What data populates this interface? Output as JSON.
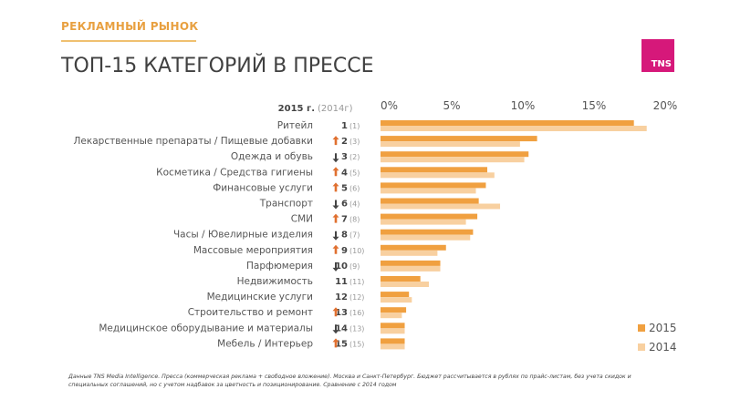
{
  "header": {
    "section": "РЕКЛАМНЫЙ РЫНОК",
    "title": "ТОП-15 КАТЕГОРИЙ В ПРЕССЕ",
    "logo": "TNS"
  },
  "chart_data": {
    "type": "bar",
    "orientation": "horizontal",
    "rank_header_2015": "2015 г.",
    "rank_header_2014": "(2014г)",
    "xlim": [
      0,
      20
    ],
    "xticks": [
      "0%",
      "5%",
      "10%",
      "15%",
      "20%"
    ],
    "categories": [
      "Ритейл",
      "Лекарственные препараты / Пищевые добавки",
      "Одежда и обувь",
      "Косметика / Средства гигиены",
      "Финансовые услуги",
      "Транспорт",
      "СМИ",
      "Часы / Ювелирные изделия",
      "Массовые мероприятия",
      "Парфюмерия",
      "Недвижимость",
      "Медицинские услуги",
      "Строительство и ремонт",
      "Медицинское оборудывание и материалы",
      "Мебель / Интерьер"
    ],
    "rank_2015": [
      "1",
      "2",
      "3",
      "4",
      "5",
      "6",
      "7",
      "8",
      "9",
      "10",
      "11",
      "12",
      "13",
      "14",
      "15"
    ],
    "rank_2014": [
      "(1)",
      "(3)",
      "(2)",
      "(5)",
      "(6)",
      "(4)",
      "(8)",
      "(7)",
      "(10)",
      "(9)",
      "(11)",
      "(12)",
      "(16)",
      "(13)",
      "(15)"
    ],
    "trend": [
      "none",
      "up",
      "down",
      "up",
      "up",
      "down",
      "up",
      "down",
      "up",
      "down",
      "none",
      "none",
      "up",
      "down",
      "up"
    ],
    "series": [
      {
        "name": "2015",
        "color": "#f0a040",
        "values": [
          17.8,
          11.0,
          10.4,
          7.5,
          7.4,
          6.9,
          6.8,
          6.5,
          4.6,
          4.2,
          2.8,
          2.0,
          1.8,
          1.7,
          1.7
        ]
      },
      {
        "name": "2014",
        "color": "#f8d0a0",
        "values": [
          18.7,
          9.8,
          10.1,
          8.0,
          6.7,
          8.4,
          6.0,
          6.3,
          4.0,
          4.2,
          3.4,
          2.2,
          1.5,
          1.7,
          1.7
        ]
      }
    ],
    "legend": "bottom-right"
  },
  "footnote": "Данные TNS Media Intelligence. Пресса (коммерческая реклама + свободное вложение). Москва и Санкт-Петербург. Бюджет рассчитывается в рублях по прайс-листам, без учета скидок и специальных соглашений, но с учетом надбавок за цветность и позиционирование. Сравнение с  2014 годом"
}
